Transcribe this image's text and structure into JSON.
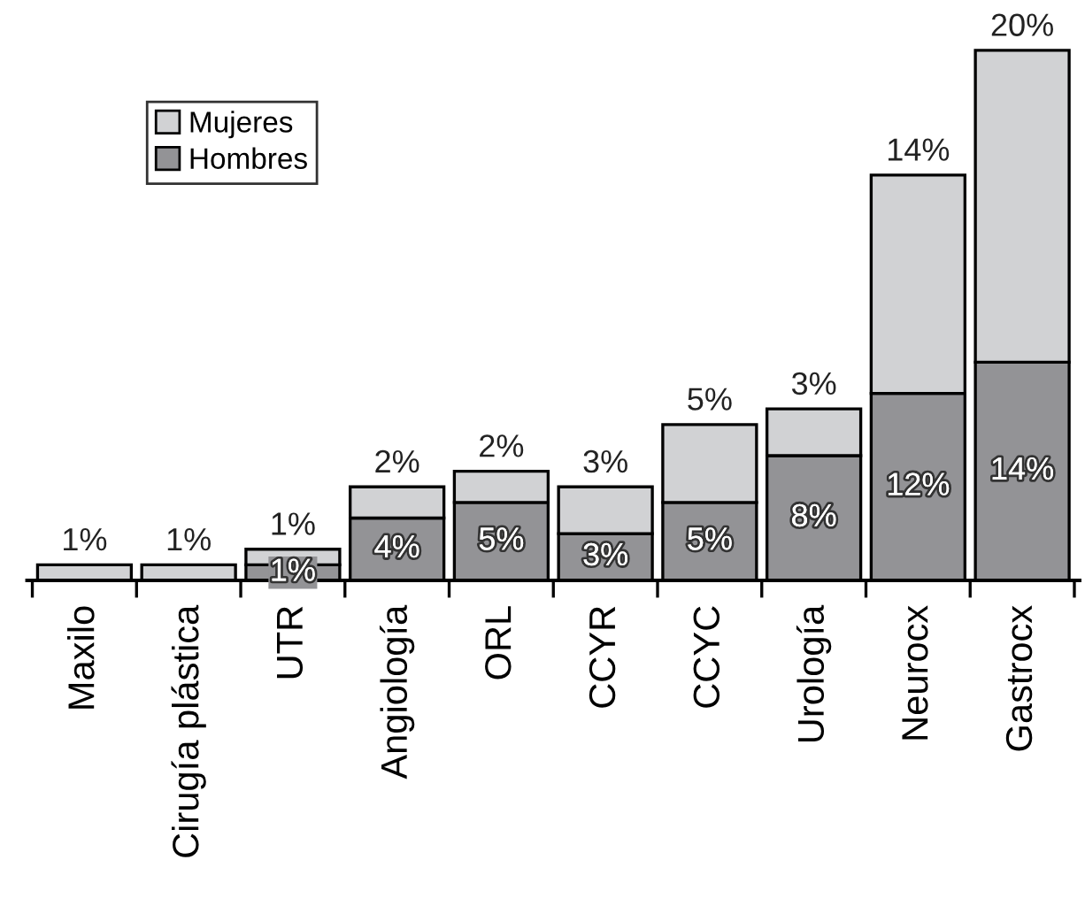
{
  "chart_data": {
    "type": "bar",
    "stacked": true,
    "legend": "top left",
    "grid": false,
    "categories": [
      "Maxilo",
      "Cirugía plástica",
      "UTR",
      "Angiología",
      "ORL",
      "CCYR",
      "CCYC",
      "Urología",
      "Neurocx",
      "Gastrocx"
    ],
    "series": [
      {
        "name": "Hombres",
        "color": "#939396",
        "values": [
          null,
          null,
          1,
          4,
          5,
          3,
          5,
          8,
          12,
          14
        ],
        "value_labels": [
          null,
          null,
          "1%",
          "4%",
          "5%",
          "3%",
          "5%",
          "8%",
          "12%",
          "14%"
        ]
      },
      {
        "name": "Mujeres",
        "color": "#d1d2d4",
        "values": [
          1,
          1,
          1,
          2,
          2,
          3,
          5,
          3,
          14,
          20
        ],
        "value_labels": [
          "1%",
          "1%",
          "1%",
          "2%",
          "2%",
          "3%",
          "5%",
          "3%",
          "14%",
          "20%"
        ]
      }
    ]
  }
}
